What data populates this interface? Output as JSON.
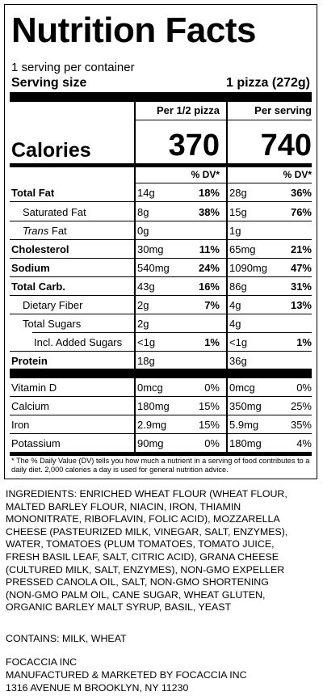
{
  "label": {
    "title": "Nutrition Facts",
    "servings_per_container": "1 serving per container",
    "serving_size_label": "Serving size",
    "serving_size_value": "1 pizza (272g)",
    "col_half_header": "Per 1/2 pizza",
    "col_full_header": "Per serving",
    "calories_label": "Calories",
    "calories_half": "370",
    "calories_full": "740",
    "dv_header": "% DV*",
    "nutrients": [
      {
        "name": "Total Fat",
        "half_amount": "14g",
        "half_dv": "18%",
        "full_amount": "28g",
        "full_dv": "36%"
      },
      {
        "name": "Saturated Fat",
        "half_amount": "8g",
        "half_dv": "38%",
        "full_amount": "15g",
        "full_dv": "76%"
      },
      {
        "name": "Trans",
        "name_suffix": " Fat",
        "half_amount": "0g",
        "half_dv": "",
        "full_amount": "1g",
        "full_dv": ""
      },
      {
        "name": "Cholesterol",
        "half_amount": "30mg",
        "half_dv": "11%",
        "full_amount": "65mg",
        "full_dv": "21%"
      },
      {
        "name": "Sodium",
        "half_amount": "540mg",
        "half_dv": "24%",
        "full_amount": "1090mg",
        "full_dv": "47%"
      },
      {
        "name": "Total Carb.",
        "half_amount": "43g",
        "half_dv": "16%",
        "full_amount": "86g",
        "full_dv": "31%"
      },
      {
        "name": "Dietary Fiber",
        "half_amount": "2g",
        "half_dv": "7%",
        "full_amount": "4g",
        "full_dv": "13%"
      },
      {
        "name": "Total Sugars",
        "half_amount": "2g",
        "half_dv": "",
        "full_amount": "4g",
        "full_dv": ""
      },
      {
        "name": "Incl. Added Sugars",
        "half_amount": "<1g",
        "half_dv": "1%",
        "full_amount": "<1g",
        "full_dv": "1%"
      },
      {
        "name": "Protein",
        "half_amount": "18g",
        "half_dv": "",
        "full_amount": "36g",
        "full_dv": ""
      }
    ],
    "vitamins": [
      {
        "name": "Vitamin D",
        "half_amount": "0mcg",
        "half_dv": "0%",
        "full_amount": "0mcg",
        "full_dv": "0%"
      },
      {
        "name": "Calcium",
        "half_amount": "180mg",
        "half_dv": "15%",
        "full_amount": "350mg",
        "full_dv": "25%"
      },
      {
        "name": "Iron",
        "half_amount": "2.9mg",
        "half_dv": "15%",
        "full_amount": "5.9mg",
        "full_dv": "35%"
      },
      {
        "name": "Potassium",
        "half_amount": "90mg",
        "half_dv": "0%",
        "full_amount": "180mg",
        "full_dv": "4%"
      }
    ],
    "footnote": "* The % Daily Value (DV) tells you how much a nutrient in a serving of food contributes to a daily diet. 2,000 calories a day is used for general nutrition advice."
  },
  "ingredients": [
    "INGREDIENTS: ENRICHED WHEAT FLOUR (WHEAT FLOUR,",
    "MALTED BARLEY FLOUR, NIACIN, IRON, THIAMIN",
    "MONONITRATE, RIBOFLAVIN, FOLIC ACID), MOZZARELLA",
    "CHEESE (PASTEURIZED MILK, VINEGAR, SALT, ENZYMES),",
    "WATER, TOMATOES (PLUM TOMATOES, TOMATO JUICE,",
    "FRESH BASIL LEAF, SALT, CITRIC ACID), GRANA CHEESE",
    "(CULTURED MILK, SALT, ENZYMES), NON-GMO EXPELLER",
    "PRESSED CANOLA OIL, SALT, NON-GMO SHORTENING",
    "(NON-GMO PALM OIL, CANE SUGAR, WHEAT GLUTEN,",
    "ORGANIC BARLEY MALT SYRUP, BASIL, YEAST"
  ],
  "contains": "CONTAINS: MILK, WHEAT",
  "company": "FOCACCIA INC",
  "manufacturer": "MANUFACTURED & MARKETED BY FOCACCIA INC",
  "address": "1316 AVENUE M BROOKLYN, NY 11230"
}
